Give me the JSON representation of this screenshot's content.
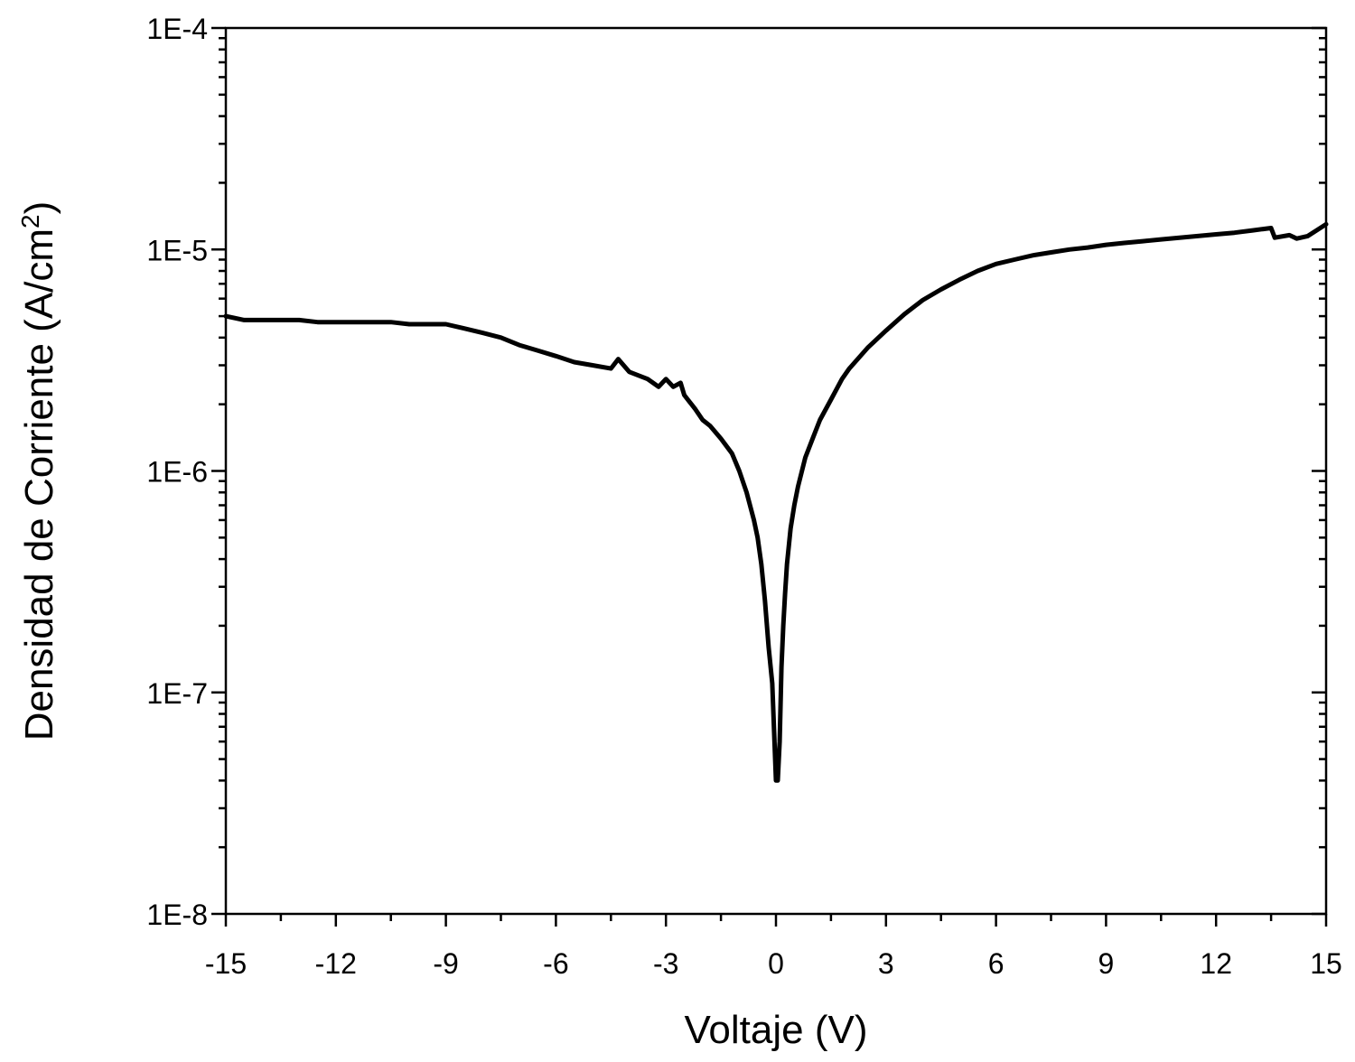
{
  "chart_data": {
    "type": "line",
    "xlabel": "Voltaje (V)",
    "ylabel": {
      "text": "Densidad de Corriente (A/cm",
      "superscript": "2",
      "suffix": ")"
    },
    "xlim": [
      -15,
      15
    ],
    "ylim": [
      1e-08,
      0.0001
    ],
    "yscale": "log",
    "grid": false,
    "legend": "none",
    "line_color": "#000000",
    "x_ticks": [
      -15,
      -12,
      -9,
      -6,
      -3,
      0,
      3,
      6,
      9,
      12,
      15
    ],
    "x_tick_labels": [
      "-15",
      "-12",
      "-9",
      "-6",
      "-3",
      "0",
      "3",
      "6",
      "9",
      "12",
      "15"
    ],
    "y_ticks": [
      1e-08,
      1e-07,
      1e-06,
      1e-05,
      0.0001
    ],
    "y_tick_labels": [
      "1E-8",
      "1E-7",
      "1E-6",
      "1E-5",
      "1E-4"
    ],
    "series": [
      {
        "x": [
          -15,
          -14.5,
          -14,
          -13.5,
          -13,
          -12.5,
          -12,
          -11.5,
          -11,
          -10.5,
          -10,
          -9.5,
          -9,
          -8.5,
          -8,
          -7.5,
          -7,
          -6.5,
          -6,
          -5.5,
          -5,
          -4.5,
          -4.3,
          -4,
          -3.5,
          -3.2,
          -3,
          -2.8,
          -2.6,
          -2.5,
          -2.2,
          -2,
          -1.8,
          -1.5,
          -1.2,
          -1,
          -0.8,
          -0.6,
          -0.5,
          -0.4,
          -0.3,
          -0.2,
          -0.1,
          0,
          0.05,
          0.1,
          0.15,
          0.2,
          0.25,
          0.3,
          0.4,
          0.5,
          0.6,
          0.8,
          1,
          1.2,
          1.5,
          1.8,
          2,
          2.5,
          3,
          3.5,
          4,
          4.5,
          5,
          5.5,
          6,
          6.5,
          7,
          7.5,
          8,
          8.5,
          9,
          9.5,
          10,
          10.5,
          11,
          11.5,
          12,
          12.5,
          13,
          13.5,
          13.6,
          14,
          14.2,
          14.5,
          15
        ],
        "y": [
          5e-06,
          4.8e-06,
          4.8e-06,
          4.8e-06,
          4.8e-06,
          4.7e-06,
          4.7e-06,
          4.7e-06,
          4.7e-06,
          4.7e-06,
          4.6e-06,
          4.6e-06,
          4.6e-06,
          4.4e-06,
          4.2e-06,
          4e-06,
          3.7e-06,
          3.5e-06,
          3.3e-06,
          3.1e-06,
          3e-06,
          2.9e-06,
          3.2e-06,
          2.8e-06,
          2.6e-06,
          2.4e-06,
          2.6e-06,
          2.4e-06,
          2.5e-06,
          2.2e-06,
          1.9e-06,
          1.7e-06,
          1.6e-06,
          1.4e-06,
          1.2e-06,
          1e-06,
          8e-07,
          6e-07,
          5e-07,
          3.8e-07,
          2.6e-07,
          1.6e-07,
          1.1e-07,
          4e-08,
          4e-08,
          6e-08,
          1.3e-07,
          2e-07,
          2.8e-07,
          3.8e-07,
          5.5e-07,
          7e-07,
          8.5e-07,
          1.15e-06,
          1.4e-06,
          1.7e-06,
          2.1e-06,
          2.6e-06,
          2.9e-06,
          3.6e-06,
          4.3e-06,
          5.1e-06,
          5.9e-06,
          6.6e-06,
          7.3e-06,
          8e-06,
          8.6e-06,
          9e-06,
          9.4e-06,
          9.7e-06,
          1e-05,
          1.02e-05,
          1.05e-05,
          1.07e-05,
          1.09e-05,
          1.11e-05,
          1.13e-05,
          1.15e-05,
          1.17e-05,
          1.19e-05,
          1.22e-05,
          1.25e-05,
          1.13e-05,
          1.16e-05,
          1.12e-05,
          1.15e-05,
          1.3e-05
        ]
      }
    ]
  }
}
